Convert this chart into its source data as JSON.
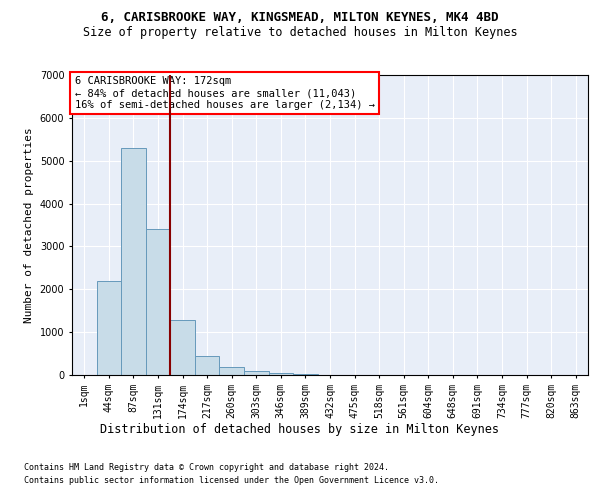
{
  "title_line1": "6, CARISBROOKE WAY, KINGSMEAD, MILTON KEYNES, MK4 4BD",
  "title_line2": "Size of property relative to detached houses in Milton Keynes",
  "xlabel": "Distribution of detached houses by size in Milton Keynes",
  "ylabel": "Number of detached properties",
  "footer_line1": "Contains HM Land Registry data © Crown copyright and database right 2024.",
  "footer_line2": "Contains public sector information licensed under the Open Government Licence v3.0.",
  "annotation_line1": "6 CARISBROOKE WAY: 172sqm",
  "annotation_line2": "← 84% of detached houses are smaller (11,043)",
  "annotation_line3": "16% of semi-detached houses are larger (2,134) →",
  "bar_color": "#c8dce8",
  "bar_edge_color": "#6699bb",
  "vline_color": "#880000",
  "fig_bg_color": "#ffffff",
  "ax_bg_color": "#e8eef8",
  "grid_color": "#ffffff",
  "categories": [
    "1sqm",
    "44sqm",
    "87sqm",
    "131sqm",
    "174sqm",
    "217sqm",
    "260sqm",
    "303sqm",
    "346sqm",
    "389sqm",
    "432sqm",
    "475sqm",
    "518sqm",
    "561sqm",
    "604sqm",
    "648sqm",
    "691sqm",
    "734sqm",
    "777sqm",
    "820sqm",
    "863sqm"
  ],
  "values": [
    0,
    2200,
    5300,
    3400,
    1280,
    450,
    195,
    100,
    50,
    18,
    8,
    3,
    1,
    1,
    0,
    0,
    0,
    0,
    0,
    0,
    0
  ],
  "ylim": [
    0,
    7000
  ],
  "yticks": [
    0,
    1000,
    2000,
    3000,
    4000,
    5000,
    6000,
    7000
  ],
  "vline_pos": 3.5,
  "title1_fontsize": 9,
  "title2_fontsize": 8.5,
  "ylabel_fontsize": 8,
  "xlabel_fontsize": 8.5,
  "tick_fontsize": 7,
  "footer_fontsize": 6,
  "annot_fontsize": 7.5
}
